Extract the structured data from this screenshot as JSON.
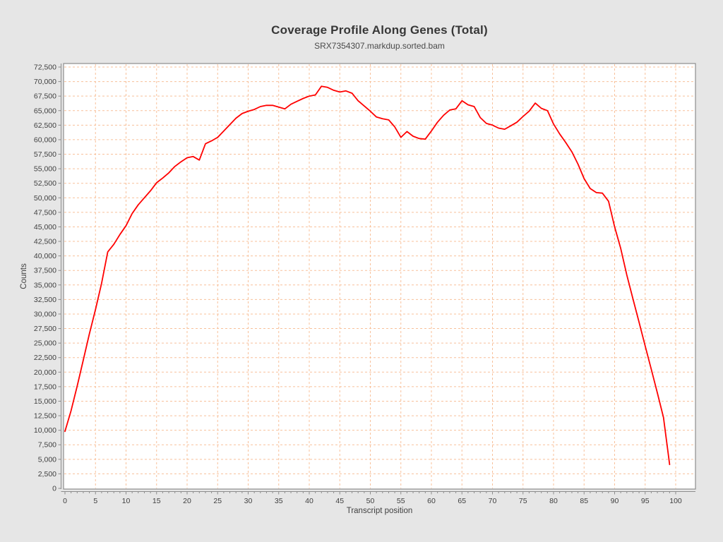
{
  "header": {
    "title": "Coverage Profile Along Genes (Total)",
    "subtitle": "SRX7354307.markdup.sorted.bam"
  },
  "chart_data": {
    "type": "line",
    "title": "Coverage Profile Along Genes (Total)",
    "subtitle": "SRX7354307.markdup.sorted.bam",
    "xlabel": "Transcript position",
    "ylabel": "Counts",
    "xlim": [
      0,
      103
    ],
    "ylim": [
      0,
      72500
    ],
    "grid": "dashed",
    "legend": "none",
    "line_color": "#ff0000",
    "grid_color": "#f8c09a",
    "plot_background": "#ffffff",
    "page_background": "#e6e6e6",
    "x_ticks": [
      0,
      5,
      10,
      15,
      20,
      25,
      30,
      35,
      40,
      45,
      50,
      55,
      60,
      65,
      70,
      75,
      80,
      85,
      90,
      95,
      100
    ],
    "y_ticks": [
      0,
      2500,
      5000,
      7500,
      10000,
      12500,
      15000,
      17500,
      20000,
      22500,
      25000,
      27500,
      30000,
      32500,
      35000,
      37500,
      40000,
      42500,
      45000,
      47500,
      50000,
      52500,
      55000,
      57500,
      60000,
      62500,
      65000,
      67500,
      70000,
      72500
    ],
    "x_start": 0,
    "x_step": 1,
    "values": [
      9800,
      13400,
      17600,
      22100,
      26600,
      30800,
      35300,
      40700,
      42000,
      43700,
      45200,
      47300,
      48800,
      50000,
      51200,
      52600,
      53400,
      54300,
      55400,
      56200,
      56900,
      57100,
      56500,
      59300,
      59800,
      60400,
      61500,
      62600,
      63700,
      64500,
      64900,
      65200,
      65700,
      65900,
      65900,
      65600,
      65300,
      66100,
      66600,
      67100,
      67500,
      67700,
      69200,
      69000,
      68500,
      68200,
      68400,
      68000,
      66700,
      65800,
      64900,
      63900,
      63600,
      63400,
      62200,
      60400,
      61400,
      60600,
      60200,
      60100,
      61500,
      63000,
      64200,
      65100,
      65300,
      66700,
      66000,
      65700,
      63800,
      62800,
      62500,
      62000,
      61800,
      62400,
      63000,
      64000,
      64900,
      66300,
      65400,
      65000,
      62700,
      61000,
      59500,
      57900,
      55800,
      53300,
      51600,
      50900,
      50800,
      49400,
      45000,
      41300,
      36700,
      32600,
      28600,
      24500,
      20500,
      16400,
      12200,
      4100
    ]
  }
}
